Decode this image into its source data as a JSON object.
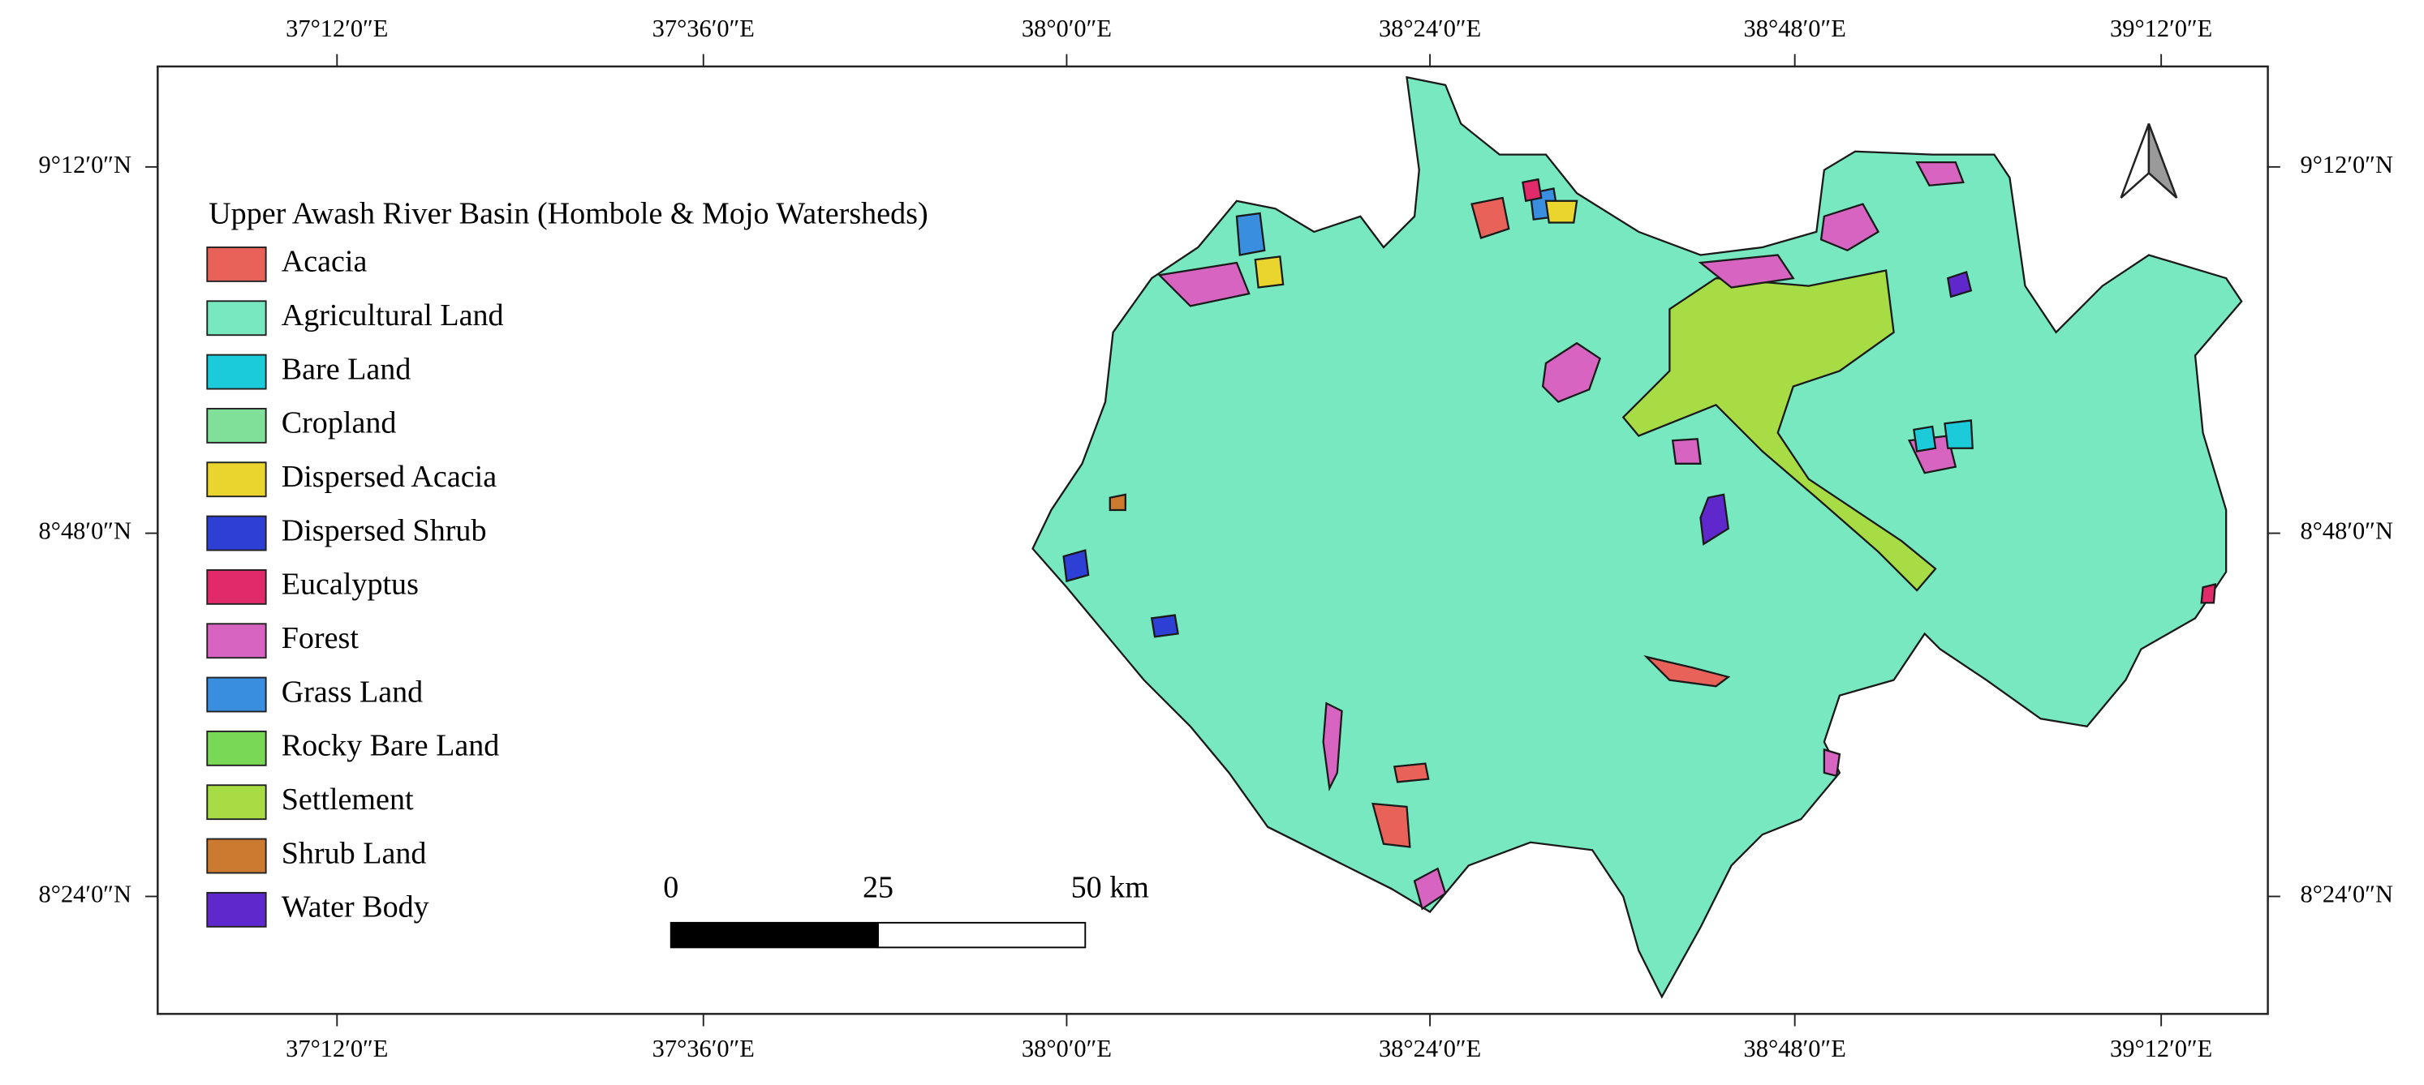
{
  "map": {
    "title": "Upper Awash River Basin (Hombole & Mojo Watersheds)",
    "legend": [
      {
        "name": "Acacia",
        "color": "#e8625a"
      },
      {
        "name": "Agricultural Land",
        "color": "#77e8c0"
      },
      {
        "name": "Bare Land",
        "color": "#1ccbd9"
      },
      {
        "name": "Cropland",
        "color": "#80e09a"
      },
      {
        "name": "Dispersed Acacia",
        "color": "#e9d52e"
      },
      {
        "name": "Dispersed Shrub",
        "color": "#2e3fd6"
      },
      {
        "name": "Eucalyptus",
        "color": "#e02a6a"
      },
      {
        "name": "Forest",
        "color": "#d664c0"
      },
      {
        "name": "Grass Land",
        "color": "#3a8ee0"
      },
      {
        "name": "Rocky Bare Land",
        "color": "#79d957"
      },
      {
        "name": "Settlement",
        "color": "#a8dc45"
      },
      {
        "name": "Shrub Land",
        "color": "#cc7a30"
      },
      {
        "name": "Water Body",
        "color": "#5f28cc"
      }
    ],
    "x_labels": [
      "37°12′0″E",
      "37°36′0″E",
      "38°0′0″E",
      "38°24′0″E",
      "38°48′0″E",
      "39°12′0″E"
    ],
    "y_labels": [
      "9°12′0″N",
      "8°48′0″N",
      "8°24′0″N"
    ],
    "scale_bar": {
      "labels": [
        "0",
        "25",
        "50 km"
      ]
    }
  }
}
